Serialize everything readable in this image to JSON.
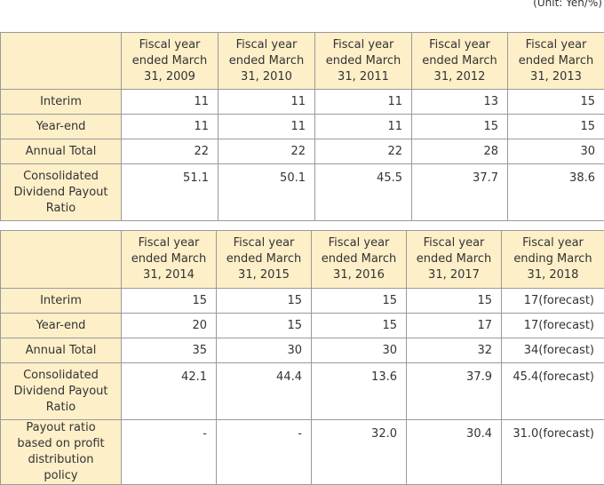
{
  "unit_note": "(Unit: Yen/%)",
  "table1": {
    "columns": [
      "Fiscal year ended March 31, 2009",
      "Fiscal year ended March 31, 2010",
      "Fiscal year ended March 31, 2011",
      "Fiscal year ended March 31, 2012",
      "Fiscal year ended March 31, 2013"
    ],
    "rows": [
      {
        "label": "Interim",
        "values": [
          "11",
          "11",
          "11",
          "13",
          "15"
        ]
      },
      {
        "label": "Year-end",
        "values": [
          "11",
          "11",
          "11",
          "15",
          "15"
        ]
      },
      {
        "label": "Annual Total",
        "values": [
          "22",
          "22",
          "22",
          "28",
          "30"
        ]
      },
      {
        "label": "Consolidated Dividend Payout Ratio",
        "values": [
          "51.1",
          "50.1",
          "45.5",
          "37.7",
          "38.6"
        ]
      }
    ]
  },
  "table2": {
    "columns": [
      "Fiscal year ended March 31, 2014",
      "Fiscal year ended March 31, 2015",
      "Fiscal year ended March 31, 2016",
      "Fiscal year ended March 31, 2017",
      "Fiscal year ending March 31, 2018"
    ],
    "rows": [
      {
        "label": "Interim",
        "values": [
          "15",
          "15",
          "15",
          "15",
          "17(forecast)"
        ]
      },
      {
        "label": "Year-end",
        "values": [
          "20",
          "15",
          "15",
          "17",
          "17(forecast)"
        ]
      },
      {
        "label": "Annual Total",
        "values": [
          "35",
          "30",
          "30",
          "32",
          "34(forecast)"
        ]
      },
      {
        "label": "Consolidated Dividend Payout Ratio",
        "values": [
          "42.1",
          "44.4",
          "13.6",
          "37.9",
          "45.4(forecast)"
        ]
      },
      {
        "label": "Payout ratio based on profit distribution policy",
        "values": [
          "-",
          "-",
          "32.0",
          "30.4",
          "31.0(forecast)"
        ]
      }
    ]
  }
}
